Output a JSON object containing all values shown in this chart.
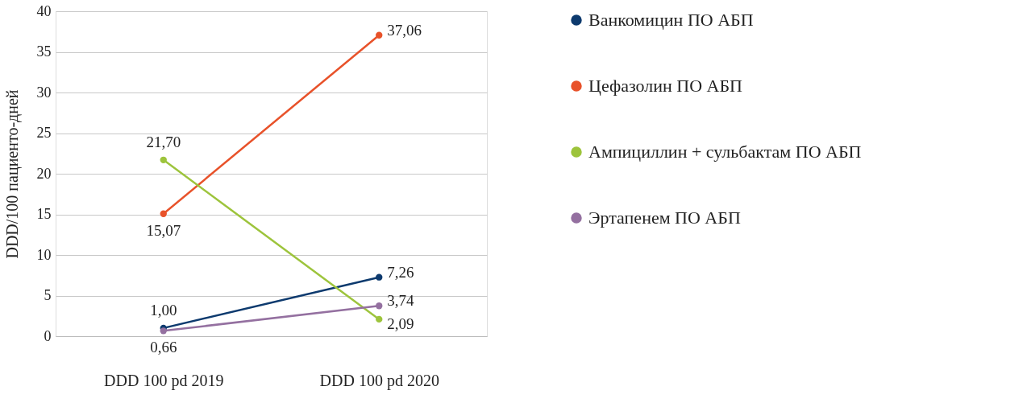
{
  "chart_data": {
    "type": "line",
    "ylabel": "DDD/100 пациенто-дней",
    "categories": [
      "DDD 100 pd 2019",
      "DDD 100 pd 2020"
    ],
    "ylim": [
      0,
      40
    ],
    "yticks": [
      0,
      5,
      10,
      15,
      20,
      25,
      30,
      35,
      40
    ],
    "grid": "y",
    "legend": "right",
    "marker": "circle",
    "line_style": "solid",
    "series": [
      {
        "name": "Ванкомицин ПО АБП",
        "color": "#0d3a6e",
        "values": [
          1.0,
          7.26
        ],
        "value_labels": [
          "1,00",
          "7,26"
        ]
      },
      {
        "name": "Цефазолин ПО АБП",
        "color": "#e8522a",
        "values": [
          15.07,
          37.06
        ],
        "value_labels": [
          "15,07",
          "37,06"
        ]
      },
      {
        "name": "Ампициллин + сульбактам ПО АБП",
        "color": "#9dc43c",
        "values": [
          21.7,
          2.09
        ],
        "value_labels": [
          "21,70",
          "2,09"
        ]
      },
      {
        "name": "Эртапенем ПО АБП",
        "color": "#9470a0",
        "values": [
          0.66,
          3.74
        ],
        "value_labels": [
          "0,66",
          "3,74"
        ]
      }
    ]
  }
}
